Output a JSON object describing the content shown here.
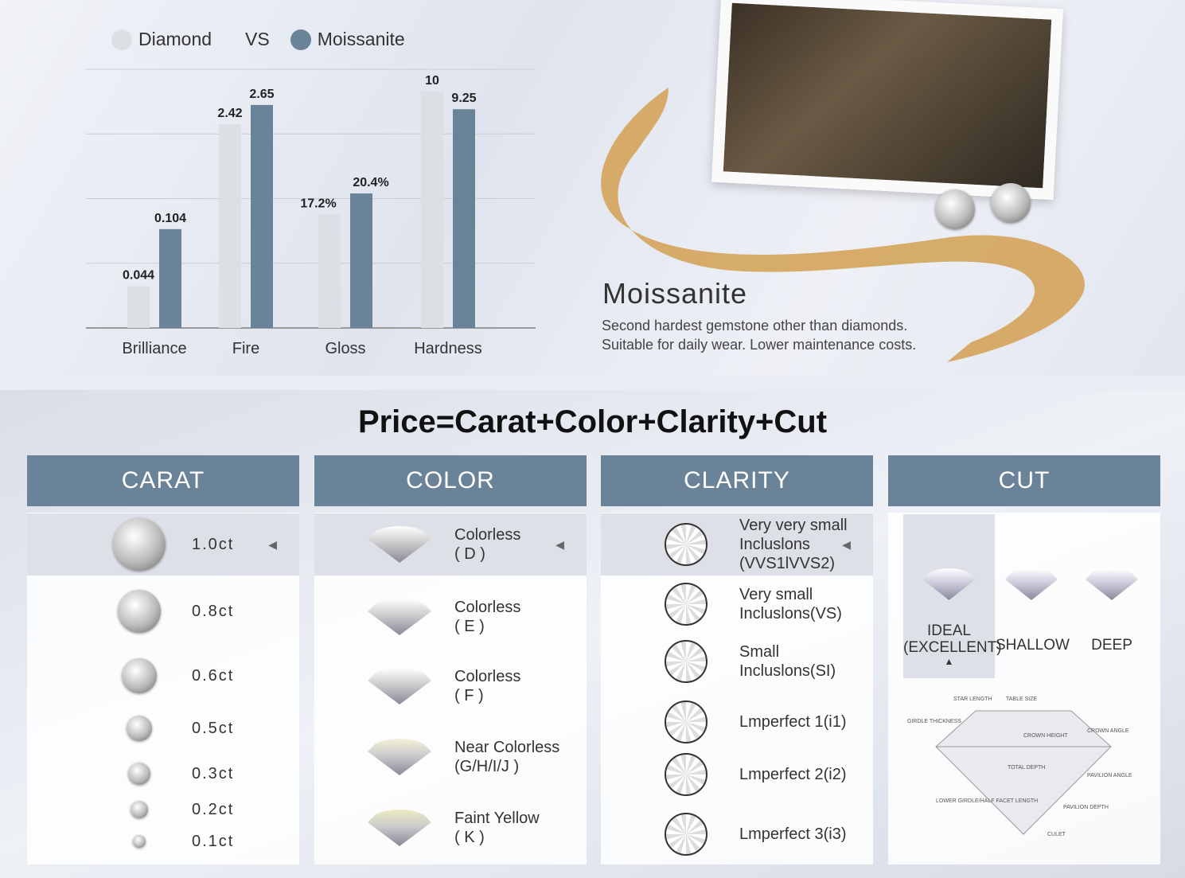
{
  "legend": {
    "diamond": "Diamond",
    "vs": "VS",
    "moissanite": "Moissanite"
  },
  "chart_data": {
    "type": "bar",
    "categories": [
      "Brilliance",
      "Fire",
      "Gloss",
      "Hardness"
    ],
    "series": [
      {
        "name": "Diamond",
        "values": [
          0.044,
          2.42,
          17.2,
          10
        ],
        "labels": [
          "0.044",
          "2.42",
          "17.2%",
          "10"
        ],
        "color": "#dcdfe4"
      },
      {
        "name": "Moissanite",
        "values": [
          0.104,
          2.65,
          20.4,
          9.25
        ],
        "labels": [
          "0.104",
          "2.65",
          "20.4%",
          "9.25"
        ],
        "color": "#6b8399"
      }
    ],
    "grid": true,
    "legend": "top-left"
  },
  "promo": {
    "title": "Moissanite",
    "line1": "Second hardest gemstone other than diamonds.",
    "line2": "Suitable for daily wear. Lower maintenance costs."
  },
  "formula": "Price=Carat+Color+Clarity+Cut",
  "carat": {
    "header": "CARAT",
    "items": [
      "1.0ct",
      "0.8ct",
      "0.6ct",
      "0.5ct",
      "0.3ct",
      "0.2ct",
      "0.1ct"
    ],
    "selected": 0
  },
  "color": {
    "header": "COLOR",
    "items": [
      [
        "Colorless",
        "( D )"
      ],
      [
        "Colorless",
        "( E )"
      ],
      [
        "Colorless",
        "( F )"
      ],
      [
        "Near Colorless",
        "(G/H/I/J )"
      ],
      [
        "Faint Yellow",
        "( K )"
      ]
    ],
    "selected": 0
  },
  "clarity": {
    "header": "CLARITY",
    "items": [
      [
        "Very very small",
        "Incluslons",
        "(VVS1lVVS2)"
      ],
      [
        "Very small",
        "Incluslons(VS)"
      ],
      [
        "Small",
        "Incluslons(SI)"
      ],
      [
        "Lmperfect 1(i1)"
      ],
      [
        "Lmperfect 2(i2)"
      ],
      [
        "Lmperfect 3(i3)"
      ]
    ],
    "selected": 0
  },
  "cut": {
    "header": "CUT",
    "options": [
      [
        "IDEAL",
        "(EXCELLENT)"
      ],
      [
        "SHALLOW"
      ],
      [
        "DEEP"
      ]
    ],
    "selected": 0,
    "diagram_labels": [
      "STAR LENGTH",
      "TABLE SIZE",
      "GIRDLE THICKNESS",
      "CROWN HEIGHT",
      "CROWN ANGLE",
      "TOTAL DEPTH",
      "PAVILION ANGLE",
      "LOWER GIRDLE/HALF FACET LENGTH",
      "PAVILION DEPTH",
      "CULET"
    ]
  },
  "colors": {
    "accent": "#6b8399",
    "selected_row": "#dde1e7",
    "ribbon": "#d4a45a"
  }
}
